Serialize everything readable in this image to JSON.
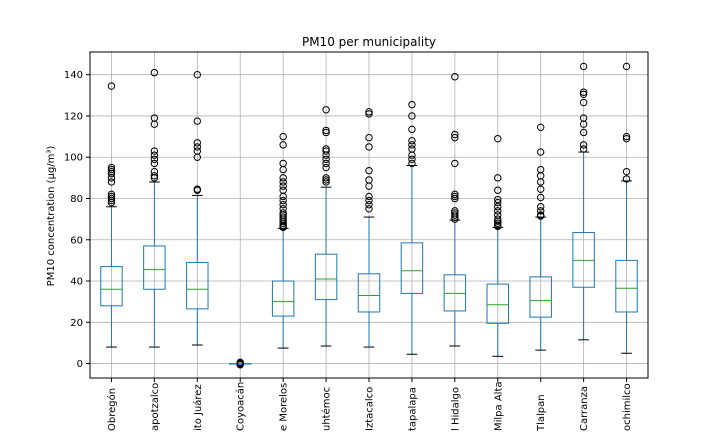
{
  "chart_data": {
    "type": "box",
    "title": "PM10 per municipality",
    "xlabel": "",
    "ylabel": "PM10 concentration (µg/m³)",
    "ylim": [
      -7,
      151
    ],
    "yticks": [
      0,
      20,
      40,
      60,
      80,
      100,
      120,
      140
    ],
    "grid": true,
    "colors": {
      "box": "#1f77b4",
      "median": "#2ca02c",
      "whisker": "#1f77b4",
      "flier": "#000000"
    },
    "categories": [
      "Obregón",
      "apotzalco",
      "ito Juárez",
      "Coyoacán",
      "e Morelos",
      "uhtémoc",
      "Iztacalco",
      "tapalapa",
      "l Hidalgo",
      "Milpa Alta",
      "Tlalpan",
      "Carranza",
      "ochimilco"
    ],
    "boxes": [
      {
        "whislo": 8,
        "q1": 28,
        "med": 36,
        "q3": 47,
        "whishi": 76,
        "fliers": [
          78,
          79,
          80,
          81,
          82,
          88,
          90,
          92,
          93,
          94,
          95,
          134.5
        ]
      },
      {
        "whislo": 8,
        "q1": 36,
        "med": 45.5,
        "q3": 57,
        "whishi": 88,
        "fliers": [
          90,
          91,
          93,
          97,
          99,
          101,
          103,
          116,
          119,
          141
        ]
      },
      {
        "whislo": 9,
        "q1": 26.5,
        "med": 36,
        "q3": 49,
        "whishi": 81.5,
        "fliers": [
          84,
          84.5,
          100,
          103,
          105,
          107,
          117.5,
          140
        ]
      },
      {
        "whislo": 0,
        "q1": 0,
        "med": 0,
        "q3": 0,
        "whishi": 0,
        "fliers": [
          -0.6,
          -0.3,
          0,
          0.3,
          0.6
        ]
      },
      {
        "whislo": 7.5,
        "q1": 23,
        "med": 30,
        "q3": 40,
        "whishi": 65.5,
        "fliers": [
          66,
          66.5,
          67,
          68,
          69,
          70,
          71,
          72,
          73,
          75,
          77,
          79,
          81,
          84,
          86,
          88,
          90,
          94,
          97,
          106,
          110
        ]
      },
      {
        "whislo": 8.5,
        "q1": 31,
        "med": 41,
        "q3": 53,
        "whishi": 85.5,
        "fliers": [
          88,
          89,
          90,
          95,
          97,
          99,
          101,
          103,
          104,
          112,
          113,
          123
        ]
      },
      {
        "whislo": 8,
        "q1": 25,
        "med": 33,
        "q3": 43.5,
        "whishi": 71,
        "fliers": [
          75,
          77,
          79,
          81,
          86,
          89,
          93.5,
          105,
          109.5,
          121,
          122
        ]
      },
      {
        "whislo": 4.5,
        "q1": 34,
        "med": 45,
        "q3": 58.5,
        "whishi": 96,
        "fliers": [
          97,
          99,
          101,
          104,
          106,
          108,
          113.5,
          120,
          125.5
        ]
      },
      {
        "whislo": 8.5,
        "q1": 25.5,
        "med": 34,
        "q3": 43,
        "whishi": 69.5,
        "fliers": [
          70,
          71,
          72,
          73,
          74,
          80,
          81,
          82,
          97,
          109.5,
          111,
          139
        ]
      },
      {
        "whislo": 3.5,
        "q1": 19.5,
        "med": 28.5,
        "q3": 38.5,
        "whishi": 66,
        "fliers": [
          66.5,
          67,
          68,
          69,
          70,
          72,
          74,
          76,
          78,
          79.5,
          84,
          90,
          109
        ]
      },
      {
        "whislo": 6.5,
        "q1": 22.5,
        "med": 30.5,
        "q3": 42,
        "whishi": 71,
        "fliers": [
          71.5,
          72,
          74,
          76,
          80.5,
          84.5,
          88,
          91,
          94,
          102.5,
          114.5
        ]
      },
      {
        "whislo": 11.5,
        "q1": 37,
        "med": 50,
        "q3": 63.5,
        "whishi": 102.5,
        "fliers": [
          104,
          106,
          112,
          116,
          119,
          126.5,
          130.5,
          131.5,
          144
        ]
      },
      {
        "whislo": 5,
        "q1": 25,
        "med": 36.5,
        "q3": 50,
        "whishi": 88.5,
        "fliers": [
          89.5,
          93,
          109,
          110,
          144
        ]
      }
    ]
  }
}
